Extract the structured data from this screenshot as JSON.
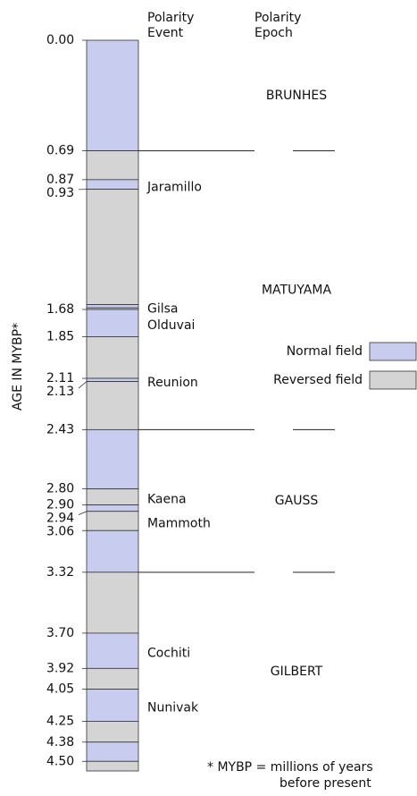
{
  "chart_data": {
    "type": "polarity",
    "ylabel": "AGE IN MYBP*",
    "event_header": [
      "Polarity",
      "Event"
    ],
    "epoch_header": [
      "Polarity",
      "Epoch"
    ],
    "ylim": [
      0,
      4.56
    ],
    "yticks": [
      {
        "value": 0,
        "label": "0.00"
      },
      0.69,
      0.87,
      0.93,
      1.68,
      1.85,
      2.11,
      2.13,
      2.43,
      {
        "value": 2.8,
        "label": "2.80"
      },
      {
        "value": 2.9,
        "label": "2.90"
      },
      2.94,
      3.06,
      3.32,
      {
        "value": 3.7,
        "label": "3.70"
      },
      3.92,
      4.05,
      4.25,
      4.38,
      {
        "value": 4.5,
        "label": "4.50"
      }
    ],
    "segments": [
      {
        "from": 0,
        "to": 0.69,
        "color": "#c8cdf0"
      },
      {
        "from": 0.69,
        "to": 0.87,
        "color": "#d4d4d4"
      },
      {
        "from": 0.87,
        "to": 0.93,
        "color": "#c8cdf0",
        "event": "Jaramillo"
      },
      {
        "from": 0.93,
        "to": 1.65,
        "color": "#d4d4d4"
      },
      {
        "from": 1.65,
        "to": 1.67,
        "color": "#c8cdf0",
        "event": "Gilsa"
      },
      {
        "from": 1.67,
        "to": 1.68,
        "color": "#d4d4d4"
      },
      {
        "from": 1.68,
        "to": 1.85,
        "color": "#c8cdf0",
        "event": "Olduvai"
      },
      {
        "from": 1.85,
        "to": 2.11,
        "color": "#d4d4d4"
      },
      {
        "from": 2.11,
        "to": 2.13,
        "color": "#c8cdf0",
        "event": "Reunion"
      },
      {
        "from": 2.13,
        "to": 2.43,
        "color": "#d4d4d4"
      },
      {
        "from": 2.43,
        "to": 2.8,
        "color": "#c8cdf0"
      },
      {
        "from": 2.8,
        "to": 2.9,
        "color": "#d4d4d4",
        "event": "Kaena"
      },
      {
        "from": 2.9,
        "to": 2.94,
        "color": "#c8cdf0"
      },
      {
        "from": 2.94,
        "to": 3.06,
        "color": "#d4d4d4",
        "event": "Mammoth"
      },
      {
        "from": 3.06,
        "to": 3.32,
        "color": "#c8cdf0"
      },
      {
        "from": 3.32,
        "to": 3.7,
        "color": "#d4d4d4"
      },
      {
        "from": 3.7,
        "to": 3.92,
        "color": "#c8cdf0",
        "event": "Cochiti"
      },
      {
        "from": 3.92,
        "to": 4.05,
        "color": "#d4d4d4"
      },
      {
        "from": 4.05,
        "to": 4.25,
        "color": "#c8cdf0",
        "event": "Nunivak"
      },
      {
        "from": 4.25,
        "to": 4.38,
        "color": "#d4d4d4"
      },
      {
        "from": 4.38,
        "to": 4.5,
        "color": "#c8cdf0"
      },
      {
        "from": 4.5,
        "to": 4.56,
        "color": "#d4d4d4"
      }
    ],
    "epochs": [
      "BRUNHES",
      "MATUYAMA",
      "GAUSS",
      "GILBERT"
    ],
    "epoch_boundaries": [
      0.69,
      2.43,
      3.32
    ],
    "legend": [
      {
        "name": "Normal field",
        "color": "#c8cdf0"
      },
      {
        "name": "Reversed field",
        "color": "#d4d4d4"
      }
    ],
    "footnote": [
      "* MYBP =  millions of years",
      "before present"
    ]
  }
}
